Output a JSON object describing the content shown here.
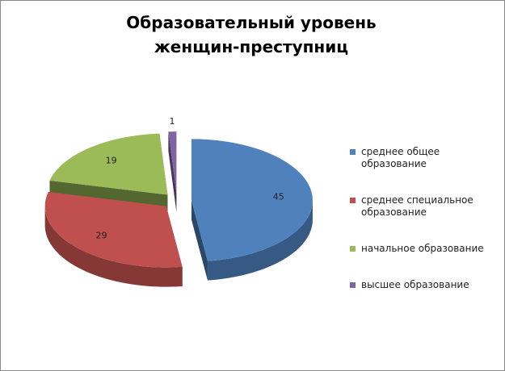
{
  "chart_data": {
    "type": "pie3d",
    "title": "Образовательный уровень женщин-преступниц",
    "categories": [
      "среднее общее образование",
      "среднее специальное образование",
      "начальное образование",
      "высшее образование"
    ],
    "series": [
      {
        "values": [
          45,
          29,
          19,
          1
        ],
        "colors": [
          "#4f81bd",
          "#c0504d",
          "#9bbb59",
          "#8064a2"
        ]
      }
    ],
    "legend": "right"
  }
}
